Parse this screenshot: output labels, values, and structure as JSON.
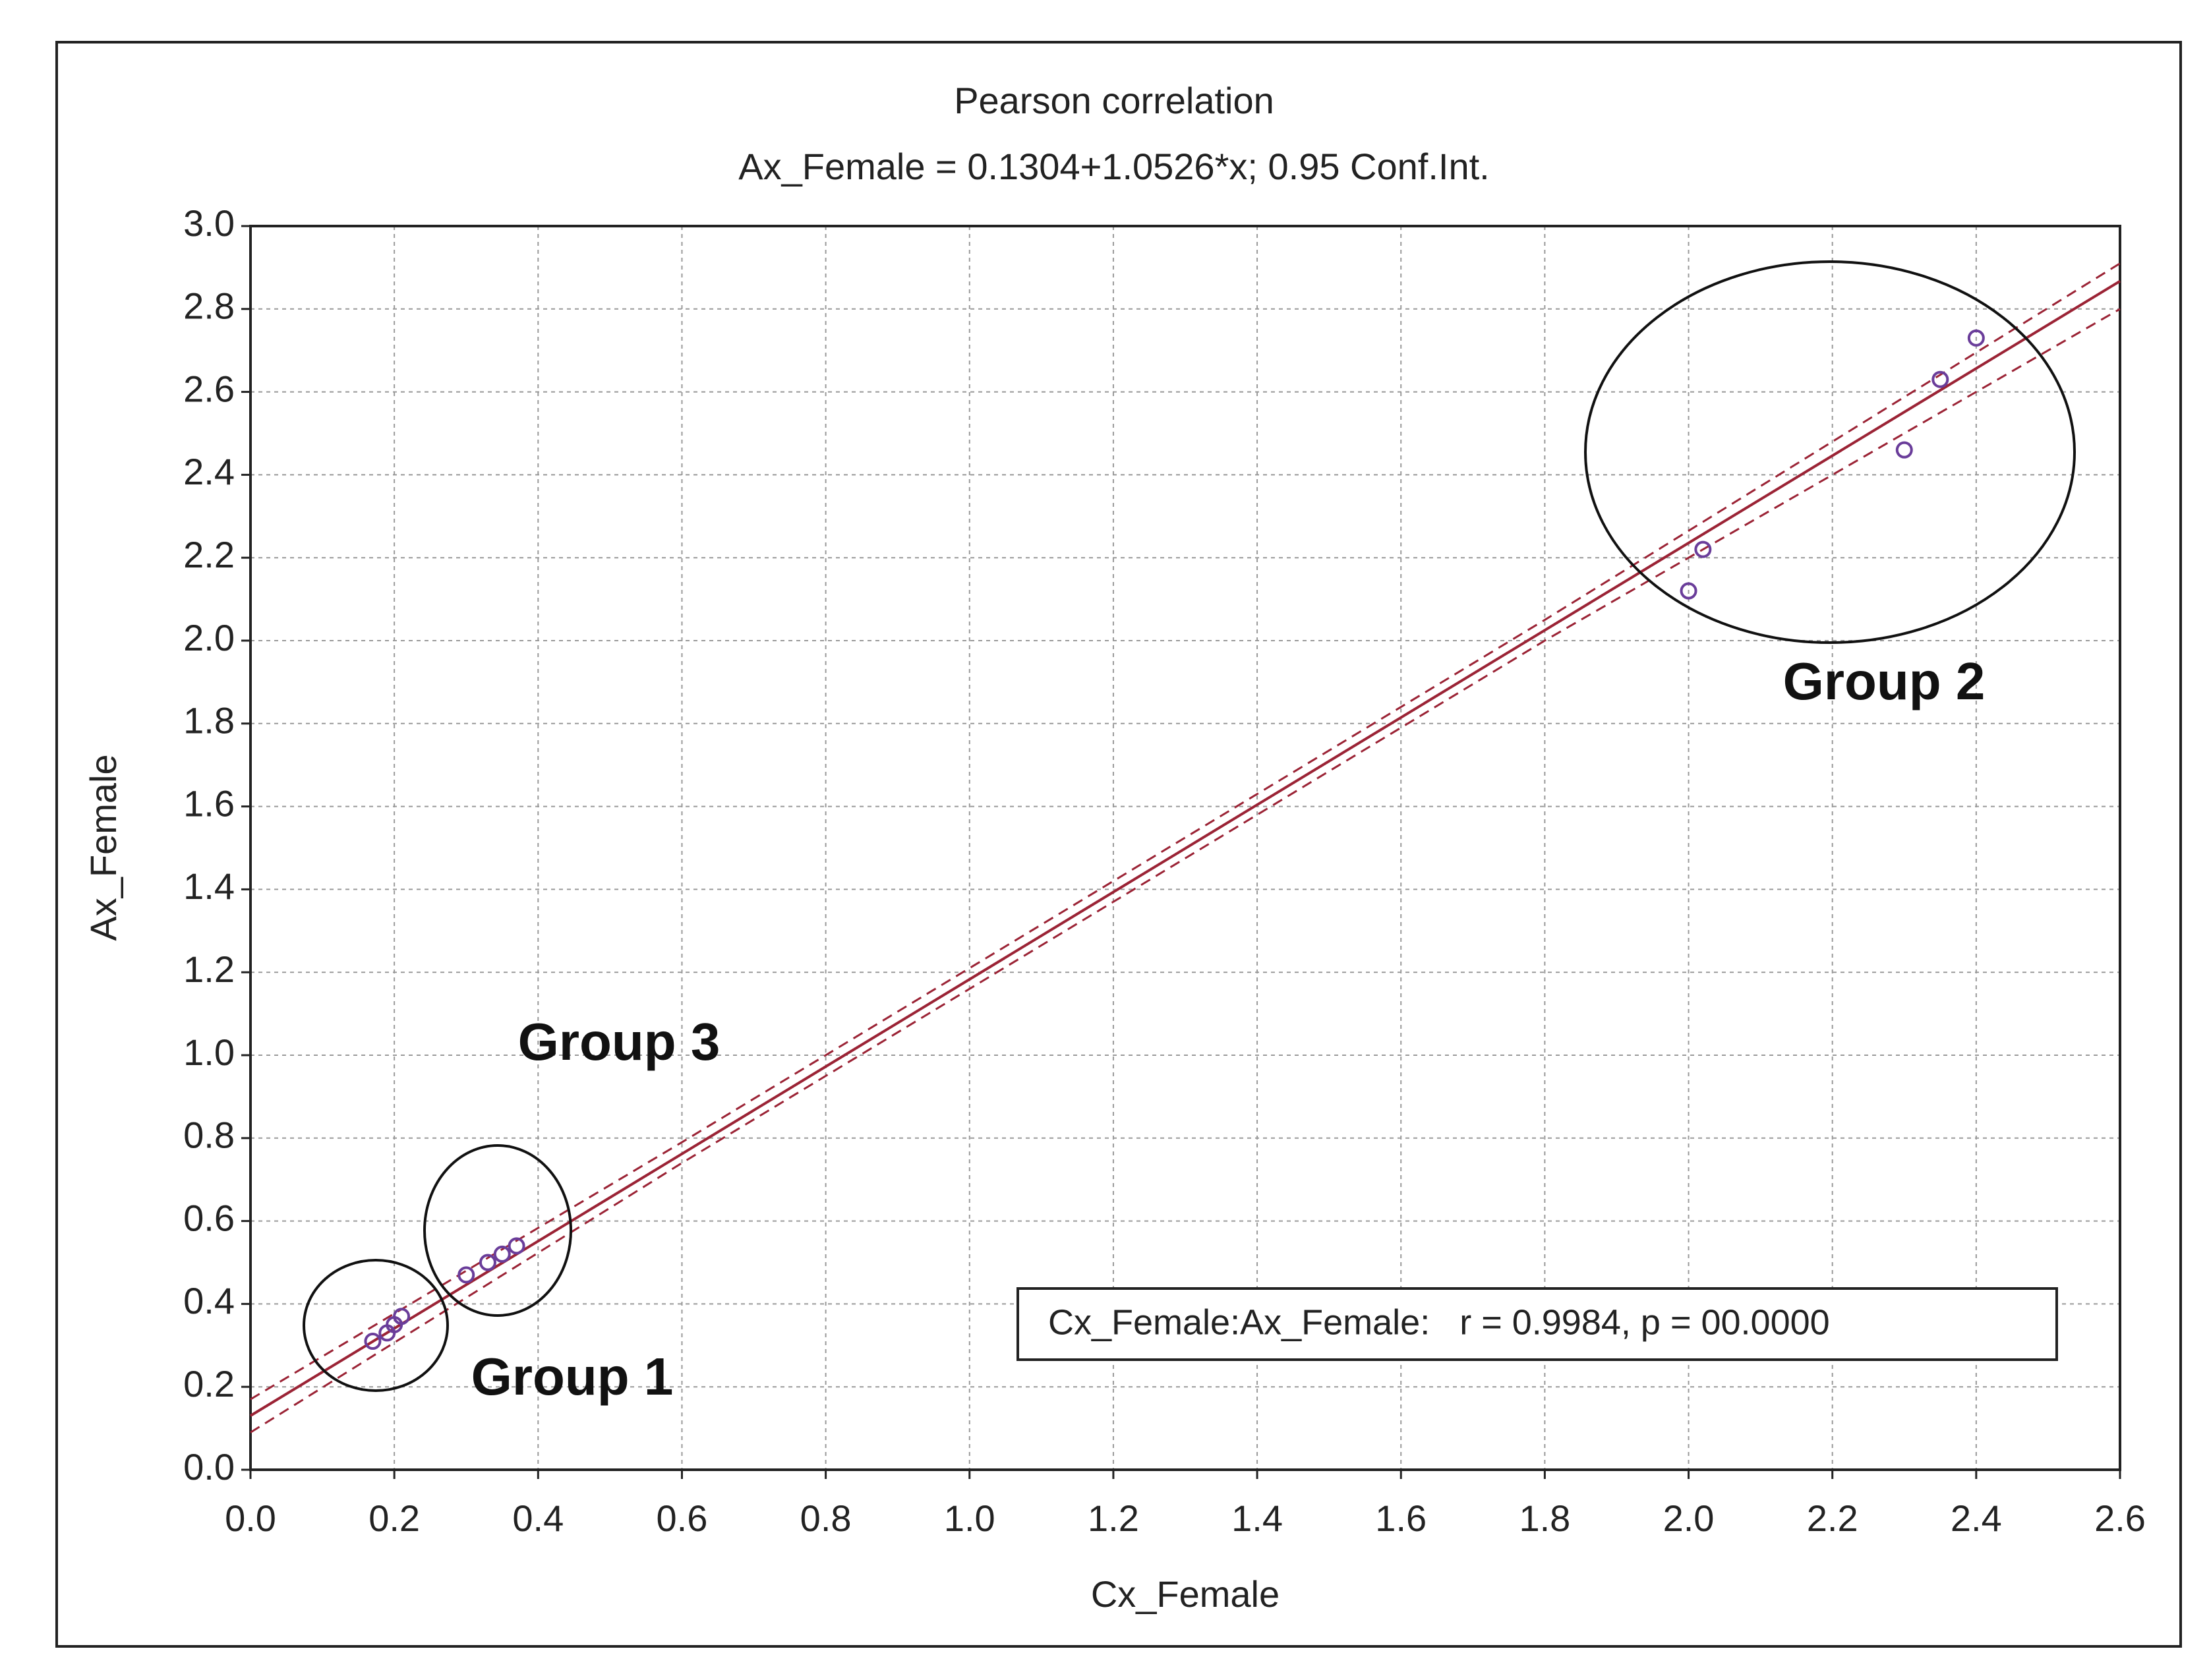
{
  "chart_data": {
    "type": "scatter",
    "title": "Pearson correlation",
    "subtitle": "Ax_Female = 0.1304+1.0526*x; 0.95 Conf.Int.",
    "x_label": "Cx_Female",
    "y_label": "Ax_Female",
    "xlim": [
      0,
      2.6
    ],
    "ylim": [
      0,
      3
    ],
    "xticks": [
      {
        "value": 0,
        "label": "0.0"
      },
      0.2,
      0.4,
      0.6,
      0.8,
      {
        "value": 1,
        "label": "1.0"
      },
      1.2,
      1.4,
      1.6,
      1.8,
      {
        "value": 2,
        "label": "2.0"
      },
      2.2,
      2.4,
      2.6
    ],
    "yticks": [
      {
        "value": 0,
        "label": "0.0"
      },
      0.2,
      0.4,
      0.6,
      0.8,
      {
        "value": 1,
        "label": "1.0"
      },
      1.2,
      1.4,
      1.6,
      1.8,
      {
        "value": 2,
        "label": "2.0"
      },
      2.2,
      2.4,
      2.6,
      2.8,
      {
        "value": 3,
        "label": "3.0"
      }
    ],
    "grid": true,
    "series": [
      {
        "name": "Cx_Female:Ax_Female",
        "color": "#6a3d9a",
        "x": [
          0.17,
          0.19,
          0.2,
          0.21,
          0.3,
          0.33,
          0.35,
          0.37,
          2.0,
          2.02,
          2.3,
          2.35,
          2.4
        ],
        "values": [
          0.31,
          0.33,
          0.35,
          0.37,
          0.47,
          0.5,
          0.52,
          0.54,
          2.12,
          2.22,
          2.46,
          2.63,
          2.73
        ]
      }
    ],
    "fit": {
      "intercept": 0.1304,
      "slope": 1.0526,
      "color": "#9b2335"
    },
    "confidence_band": {
      "x": [
        0,
        0.6,
        1.2,
        1.8,
        2.6
      ],
      "upper": [
        0.17,
        0.79,
        1.42,
        2.05,
        2.91
      ],
      "lower": [
        0.09,
        0.74,
        1.37,
        2.0,
        2.8
      ]
    },
    "legend_text": "Cx_Female:Ax_Female:   r = 0.9984, p = 00.0000",
    "annotations": [
      "Group 1",
      "Group 2",
      "Group 3"
    ]
  }
}
